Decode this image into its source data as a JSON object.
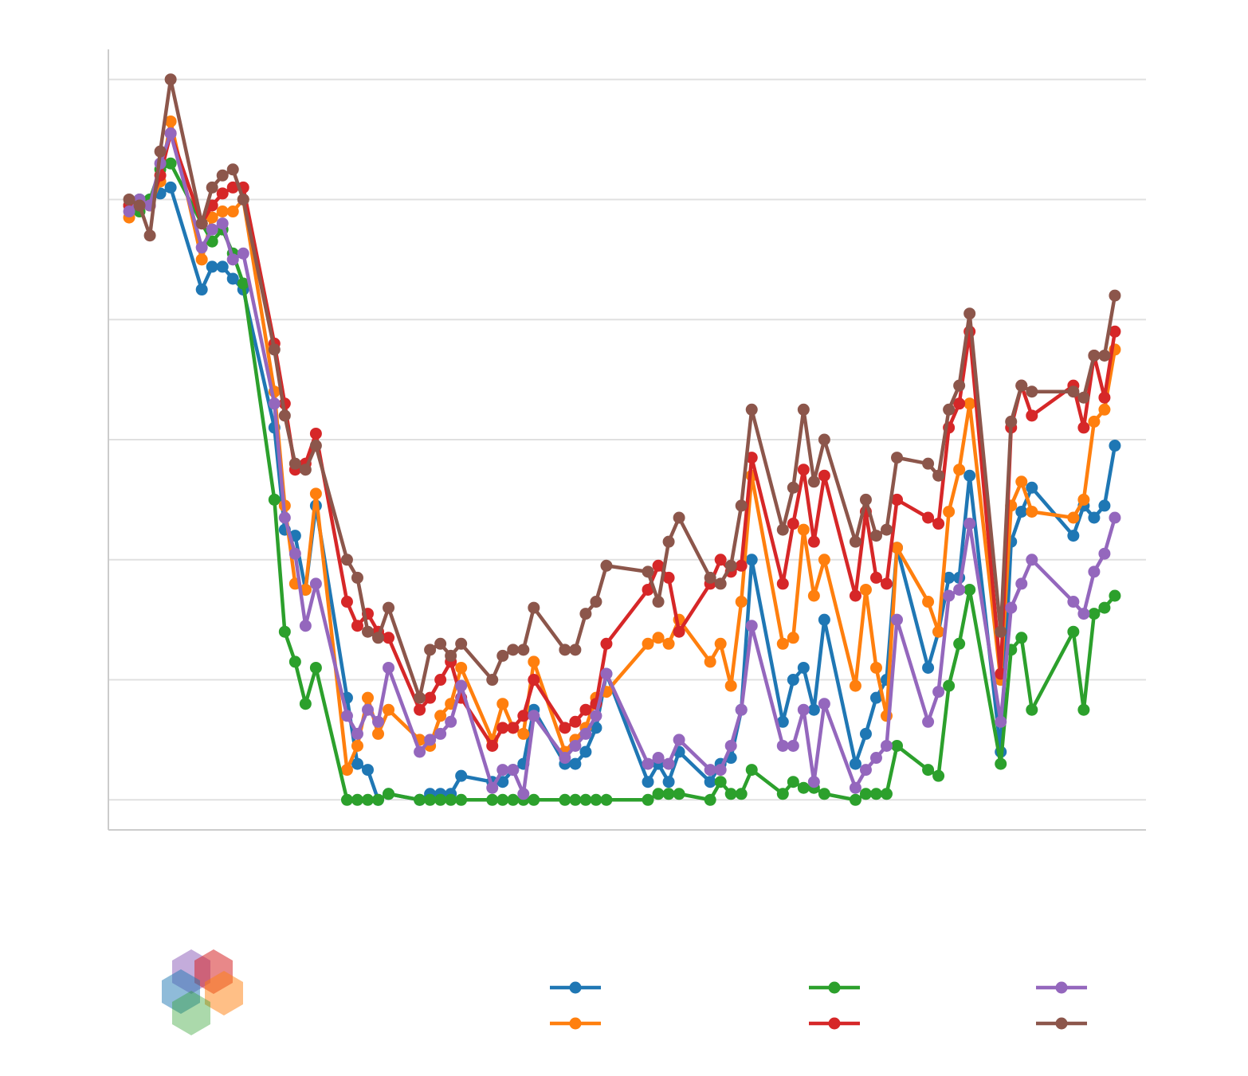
{
  "chart_data": {
    "type": "line",
    "x": [
      0,
      1,
      2,
      3,
      4,
      7,
      8,
      9,
      10,
      11,
      14,
      15,
      16,
      17,
      18,
      21,
      22,
      23,
      24,
      25,
      28,
      29,
      30,
      31,
      32,
      35,
      36,
      37,
      38,
      39,
      42,
      43,
      44,
      45,
      46,
      50,
      51,
      52,
      53,
      56,
      57,
      58,
      59,
      60,
      63,
      64,
      65,
      66,
      67,
      70,
      71,
      72,
      73,
      74,
      77,
      78,
      79,
      80,
      81,
      84,
      85,
      86,
      87,
      91,
      92,
      93,
      94,
      95
    ],
    "xlim": [
      -2,
      98
    ],
    "ylim": [
      -0.25,
      6.25
    ],
    "yticks": [
      0,
      1,
      2,
      3,
      4,
      5,
      6
    ],
    "grid": true,
    "legend": "bottom",
    "series": [
      {
        "color": "#1f77b4",
        "values": [
          4.95,
          5.0,
          5.0,
          5.05,
          5.1,
          4.25,
          4.44,
          4.44,
          4.34,
          4.25,
          3.1,
          2.25,
          2.2,
          1.75,
          2.45,
          0.85,
          0.3,
          0.25,
          0,
          0.05,
          0,
          0.05,
          0.05,
          0.05,
          0.2,
          0.15,
          0.15,
          0.25,
          0.3,
          0.75,
          0.3,
          0.3,
          0.4,
          0.6,
          1.05,
          0.15,
          0.3,
          0.15,
          0.4,
          0.15,
          0.3,
          0.35,
          0.75,
          2.0,
          0.65,
          1.0,
          1.1,
          0.75,
          1.5,
          0.3,
          0.55,
          0.85,
          1.0,
          2.1,
          1.1,
          1.4,
          1.85,
          1.85,
          2.7,
          0.4,
          2.15,
          2.4,
          2.6,
          2.2,
          2.45,
          2.35,
          2.45,
          2.95
        ]
      },
      {
        "color": "#ff7f0e",
        "values": [
          4.85,
          4.95,
          4.95,
          5.15,
          5.65,
          4.5,
          4.85,
          4.9,
          4.9,
          5.0,
          3.4,
          2.45,
          1.8,
          1.75,
          2.55,
          0.25,
          0.45,
          0.85,
          0.55,
          0.75,
          0.5,
          0.45,
          0.7,
          0.8,
          1.1,
          0.5,
          0.8,
          0.6,
          0.55,
          1.15,
          0.4,
          0.5,
          0.6,
          0.85,
          0.9,
          1.3,
          1.35,
          1.3,
          1.5,
          1.15,
          1.3,
          0.95,
          1.65,
          2.7,
          1.3,
          1.35,
          2.25,
          1.7,
          2.0,
          0.95,
          1.75,
          1.1,
          0.7,
          2.1,
          1.65,
          1.4,
          2.4,
          2.75,
          3.3,
          1.0,
          2.45,
          2.65,
          2.4,
          2.35,
          2.5,
          3.15,
          3.25,
          3.75
        ]
      },
      {
        "color": "#2ca02c",
        "values": [
          4.95,
          4.9,
          5.0,
          5.25,
          5.3,
          4.8,
          4.65,
          4.75,
          4.55,
          4.3,
          2.5,
          1.4,
          1.15,
          0.8,
          1.1,
          0,
          0,
          0,
          0,
          0.05,
          0,
          0,
          0,
          0,
          0,
          0,
          0,
          0,
          0,
          0,
          0,
          0,
          0,
          0,
          0,
          0,
          0.05,
          0.05,
          0.05,
          0,
          0.15,
          0.05,
          0.05,
          0.25,
          0.05,
          0.15,
          0.1,
          0.1,
          0.05,
          0,
          0.05,
          0.05,
          0.05,
          0.45,
          0.25,
          0.2,
          0.95,
          1.3,
          1.75,
          0.3,
          1.25,
          1.35,
          0.75,
          1.4,
          0.75,
          1.55,
          1.6,
          1.7
        ]
      },
      {
        "color": "#d62728",
        "values": [
          4.95,
          4.95,
          4.95,
          5.2,
          5.55,
          4.8,
          4.95,
          5.05,
          5.1,
          5.1,
          3.8,
          3.3,
          2.75,
          2.8,
          3.05,
          1.65,
          1.45,
          1.55,
          1.4,
          1.35,
          0.75,
          0.85,
          1.0,
          1.15,
          0.85,
          0.45,
          0.6,
          0.6,
          0.7,
          1.0,
          0.6,
          0.65,
          0.75,
          0.8,
          1.3,
          1.75,
          1.95,
          1.85,
          1.4,
          1.8,
          2.0,
          1.9,
          1.95,
          2.85,
          1.8,
          2.3,
          2.75,
          2.15,
          2.7,
          1.7,
          2.4,
          1.85,
          1.8,
          2.5,
          2.35,
          2.3,
          3.1,
          3.3,
          3.9,
          1.05,
          3.1,
          3.45,
          3.2,
          3.45,
          3.1,
          3.7,
          3.35,
          3.9
        ]
      },
      {
        "color": "#9467bd",
        "values": [
          4.9,
          5.0,
          4.95,
          5.3,
          5.55,
          4.6,
          4.75,
          4.8,
          4.5,
          4.55,
          3.3,
          2.35,
          2.05,
          1.45,
          1.8,
          0.7,
          0.55,
          0.75,
          0.65,
          1.1,
          0.4,
          0.5,
          0.55,
          0.65,
          0.95,
          0.1,
          0.25,
          0.25,
          0.05,
          0.7,
          0.35,
          0.45,
          0.55,
          0.7,
          1.05,
          0.3,
          0.35,
          0.3,
          0.5,
          0.25,
          0.25,
          0.45,
          0.75,
          1.45,
          0.45,
          0.45,
          0.75,
          0.15,
          0.8,
          0.1,
          0.25,
          0.35,
          0.45,
          1.5,
          0.65,
          0.9,
          1.7,
          1.75,
          2.3,
          0.65,
          1.6,
          1.8,
          2.0,
          1.65,
          1.55,
          1.9,
          2.05,
          2.35
        ]
      },
      {
        "color": "#8c564b",
        "values": [
          5.0,
          4.95,
          4.7,
          5.4,
          6.0,
          4.8,
          5.1,
          5.2,
          5.25,
          5.0,
          3.75,
          3.2,
          2.8,
          2.75,
          2.95,
          2.0,
          1.85,
          1.4,
          1.35,
          1.6,
          0.85,
          1.25,
          1.3,
          1.2,
          1.3,
          1.0,
          1.2,
          1.25,
          1.25,
          1.6,
          1.25,
          1.25,
          1.55,
          1.65,
          1.95,
          1.9,
          1.65,
          2.15,
          2.35,
          1.85,
          1.8,
          1.95,
          2.45,
          3.25,
          2.25,
          2.6,
          3.25,
          2.65,
          3.0,
          2.15,
          2.5,
          2.2,
          2.25,
          2.85,
          2.8,
          2.7,
          3.25,
          3.45,
          4.05,
          1.4,
          3.15,
          3.45,
          3.4,
          3.4,
          3.35,
          3.7,
          3.7,
          4.2
        ]
      }
    ]
  }
}
